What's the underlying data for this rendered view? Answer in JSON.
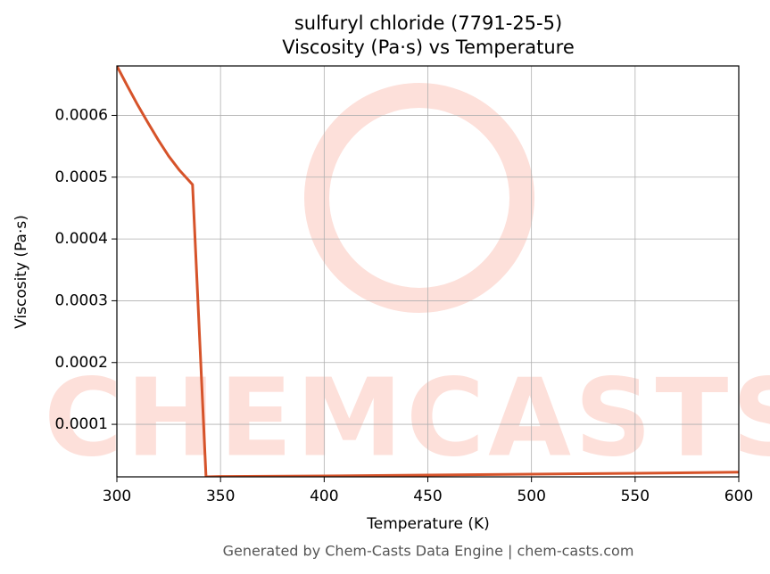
{
  "chart_data": {
    "type": "line",
    "title": "sulfuryl chloride (7791-25-5)",
    "subtitle": "Viscosity (Pa·s) vs Temperature",
    "x_label": "Temperature (K)",
    "y_label": "Viscosity (Pa·s)",
    "footer": "Generated by Chem-Casts Data Engine | chem-casts.com",
    "watermark": "CHEMCASTS",
    "x": [
      300,
      305,
      310,
      315,
      320,
      325,
      330,
      336.5,
      343,
      350,
      400,
      450,
      500,
      550,
      600
    ],
    "series": [
      {
        "name": "Viscosity",
        "color": "#d6532a",
        "values": [
          0.00068,
          0.000648,
          0.000617,
          0.000588,
          0.00056,
          0.000534,
          0.000512,
          0.000488,
          1.5e-05,
          1.55e-05,
          1.65e-05,
          1.78e-05,
          1.93e-05,
          2.08e-05,
          2.25e-05
        ]
      }
    ],
    "xlim": [
      300,
      600
    ],
    "xticks": [
      300,
      350,
      400,
      450,
      500,
      550,
      600
    ],
    "ylim": [
      1.5e-05,
      0.00068
    ],
    "yticks": [
      0.0001,
      0.0002,
      0.0003,
      0.0004,
      0.0005,
      0.0006
    ],
    "grid": true
  }
}
